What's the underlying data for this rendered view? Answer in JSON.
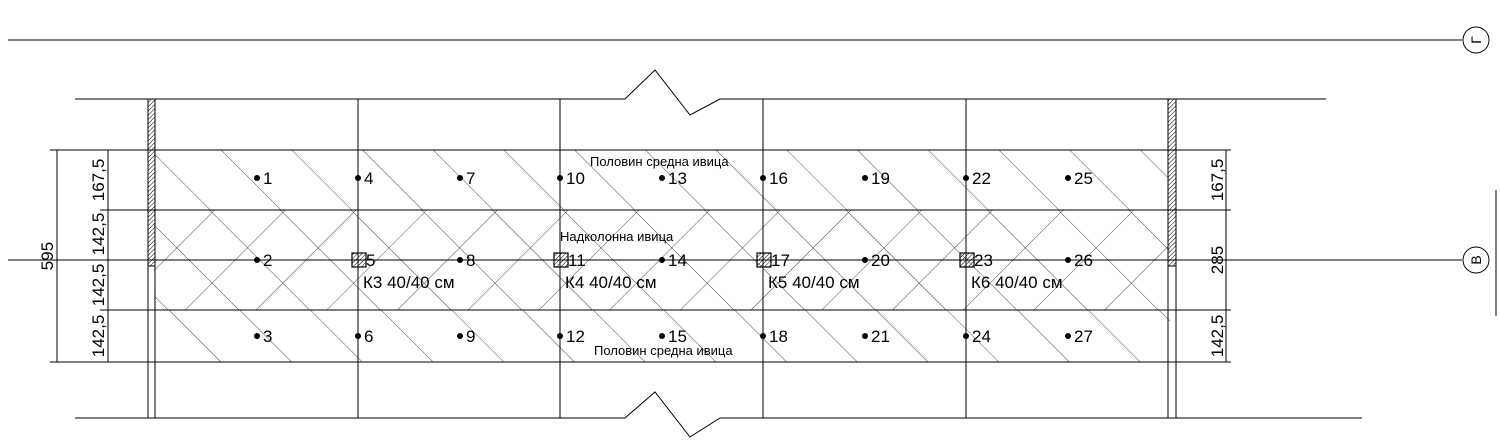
{
  "strips": {
    "top": "Половин средна ивица",
    "middle": "Надколонна ивица",
    "bottom": "Половин средна ивица"
  },
  "columns": [
    "К3 40/40 см",
    "К4 40/40 см",
    "К5 40/40 см",
    "К6 40/40 см"
  ],
  "points": [
    "1",
    "2",
    "3",
    "4",
    "5",
    "6",
    "7",
    "8",
    "9",
    "10",
    "11",
    "12",
    "13",
    "14",
    "15",
    "16",
    "17",
    "18",
    "19",
    "20",
    "21",
    "22",
    "23",
    "24",
    "25",
    "26",
    "27"
  ],
  "dimensions": {
    "left_total": "595",
    "left_top": "167,5",
    "left_mid_top": "142,5",
    "left_mid_bottom": "142,5",
    "left_bottom": "142,5",
    "right_top": "167,5",
    "right_mid": "285",
    "right_bottom": "142,5"
  },
  "axes": {
    "top": "Г",
    "middle": "В"
  },
  "colors": {
    "line": "#000000",
    "background": "#ffffff"
  }
}
